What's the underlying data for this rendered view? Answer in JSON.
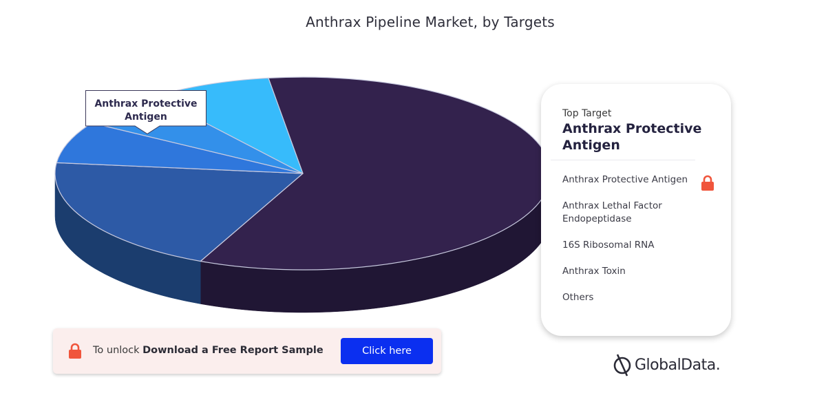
{
  "chart_data": {
    "type": "pie",
    "title": "Anthrax Pipeline Market, by Targets",
    "categories": [
      "Anthrax Protective Antigen",
      "Anthrax Lethal Factor Endopeptidase",
      "16S Ribosomal RNA",
      "Anthrax Toxin",
      "Others"
    ],
    "values": [
      59,
      20,
      7,
      6,
      8
    ],
    "colors": [
      "#33224d",
      "#2d5aa6",
      "#2f77dc",
      "#3390ea",
      "#37bbfb"
    ],
    "side_colors": [
      "#201634",
      "#1b3d6e",
      "#1c3f63",
      "#183d5c",
      "#1d5c78"
    ],
    "callout": "Anthrax Protective Antigen"
  },
  "panel": {
    "subtitle": "Top Target",
    "heading": "Anthrax Protective Antigen"
  },
  "legend": {
    "items": [
      "Anthrax Protective Antigen",
      "Anthrax Lethal Factor Endopeptidase",
      "16S Ribosomal RNA",
      "Anthrax Toxin",
      "Others"
    ]
  },
  "unlock": {
    "prefix": "To unlock",
    "bold": "Download a Free Report Sample",
    "button_label": "Click here",
    "lock_color": "#f0553c",
    "button_color": "#0b2ff0"
  },
  "brand": {
    "name": "GlobalData."
  }
}
